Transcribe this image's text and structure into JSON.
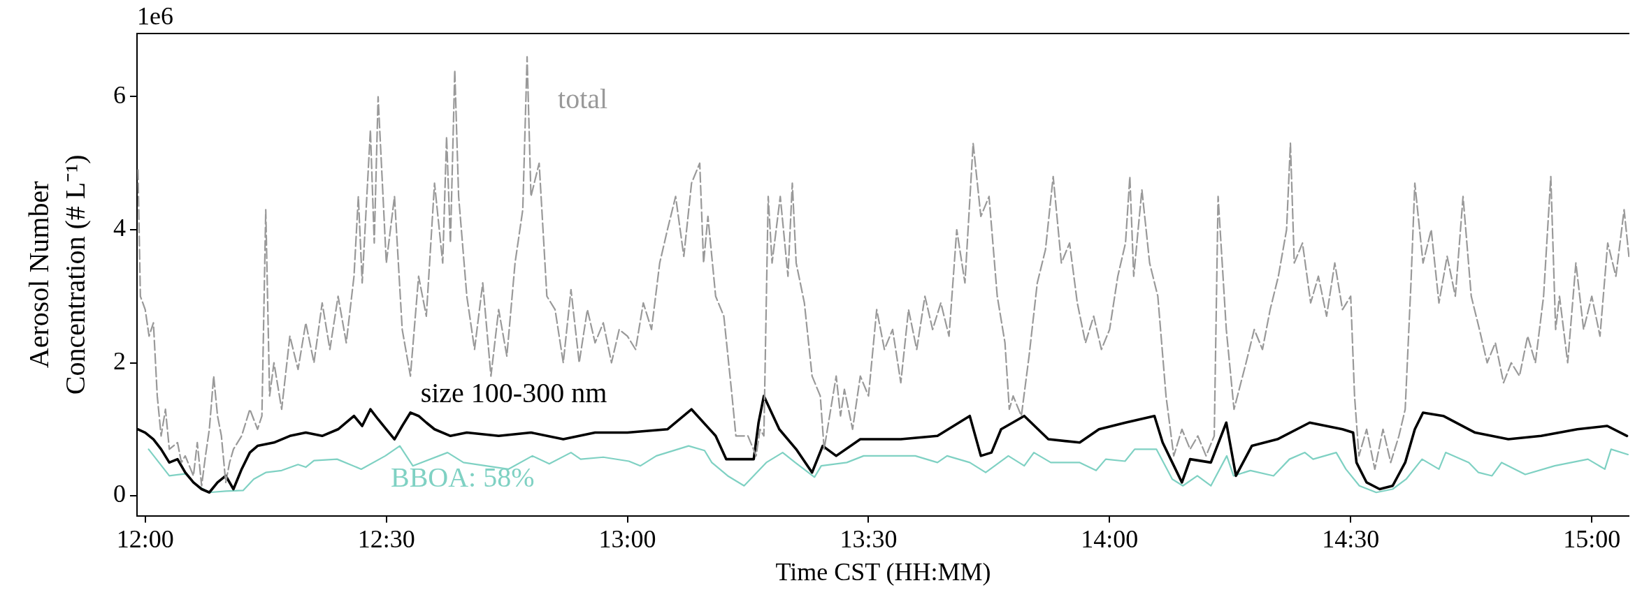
{
  "chart_data": {
    "type": "line",
    "xlabel": "Time CST (HH:MM)",
    "ylabel": "Aerosol Number Concentration (# L⁻¹)",
    "annotations": [
      "1e6"
    ],
    "xlim": [
      11.983,
      15.078
    ],
    "xticks": [
      {
        "value": 12,
        "label": "12:00"
      },
      {
        "value": 12.5,
        "label": "12:30"
      },
      {
        "value": 13,
        "label": "13:00"
      },
      {
        "value": 13.5,
        "label": "13:30"
      },
      {
        "value": 14,
        "label": "14:00"
      },
      {
        "value": 14.5,
        "label": "14:30"
      },
      {
        "value": 15,
        "label": "15:00"
      }
    ],
    "ylim": [
      -0.3,
      6.95
    ],
    "yticks": [
      0,
      2,
      4,
      6
    ],
    "marker": "none",
    "series": [
      {
        "name": "total",
        "color": "#999999",
        "line_style": "dashed",
        "x": [
          11.985,
          11.99,
          12.0,
          12.008,
          12.017,
          12.025,
          12.033,
          12.042,
          12.05,
          12.067,
          12.075,
          12.083,
          12.1,
          12.108,
          12.117,
          12.125,
          12.133,
          12.142,
          12.15,
          12.158,
          12.167,
          12.175,
          12.183,
          12.2,
          12.217,
          12.233,
          12.242,
          12.25,
          12.258,
          12.267,
          12.283,
          12.3,
          12.317,
          12.333,
          12.35,
          12.367,
          12.383,
          12.4,
          12.417,
          12.433,
          12.442,
          12.45,
          12.467,
          12.475,
          12.483,
          12.5,
          12.517,
          12.533,
          12.55,
          12.567,
          12.583,
          12.6,
          12.617,
          12.625,
          12.633,
          12.642,
          12.65,
          12.667,
          12.683,
          12.7,
          12.717,
          12.733,
          12.75,
          12.767,
          12.783,
          12.792,
          12.8,
          12.817,
          12.833,
          12.85,
          12.867,
          12.883,
          12.9,
          12.917,
          12.933,
          12.95,
          12.967,
          12.983,
          13.0,
          13.017,
          13.033,
          13.05,
          13.067,
          13.083,
          13.1,
          13.117,
          13.133,
          13.15,
          13.158,
          13.167,
          13.183,
          13.2,
          13.217,
          13.225,
          13.25,
          13.267,
          13.275,
          13.283,
          13.292,
          13.3,
          13.317,
          13.333,
          13.342,
          13.35,
          13.367,
          13.383,
          13.4,
          13.408,
          13.433,
          13.442,
          13.45,
          13.467,
          13.483,
          13.5,
          13.517,
          13.533,
          13.55,
          13.567,
          13.583,
          13.6,
          13.617,
          13.633,
          13.65,
          13.667,
          13.683,
          13.7,
          13.717,
          13.733,
          13.75,
          13.767,
          13.783,
          13.792,
          13.8,
          13.817,
          13.833,
          13.85,
          13.867,
          13.883,
          13.9,
          13.917,
          13.933,
          13.95,
          13.967,
          13.983,
          14.0,
          14.017,
          14.033,
          14.042,
          14.05,
          14.067,
          14.083,
          14.1,
          14.117,
          14.133,
          14.15,
          14.167,
          14.183,
          14.2,
          14.217,
          14.225,
          14.242,
          14.258,
          14.283,
          14.3,
          14.317,
          14.333,
          14.35,
          14.367,
          14.375,
          14.383,
          14.4,
          14.417,
          14.433,
          14.45,
          14.467,
          14.483,
          14.5,
          14.508,
          14.517,
          14.533,
          14.55,
          14.567,
          14.583,
          14.6,
          14.613,
          14.625,
          14.633,
          14.65,
          14.667,
          14.683,
          14.7,
          14.717,
          14.733,
          14.75,
          14.767,
          14.783,
          14.8,
          14.817,
          14.833,
          14.85,
          14.867,
          14.883,
          14.9,
          14.915,
          14.925,
          14.933,
          14.95,
          14.967,
          14.983,
          15.0,
          15.017,
          15.033,
          15.05,
          15.067,
          15.077
        ],
        "values": [
          4.9,
          3.0,
          2.8,
          2.4,
          2.6,
          1.5,
          0.9,
          1.3,
          0.7,
          0.8,
          0.5,
          0.6,
          0.3,
          0.8,
          0.15,
          0.6,
          1.0,
          1.8,
          1.2,
          0.9,
          0.2,
          0.5,
          0.7,
          0.9,
          1.3,
          1.0,
          1.2,
          4.3,
          1.5,
          2.0,
          1.3,
          2.4,
          1.9,
          2.6,
          2.0,
          2.9,
          2.2,
          3.0,
          2.3,
          3.3,
          4.5,
          3.2,
          5.5,
          3.8,
          6.0,
          3.5,
          4.5,
          2.5,
          1.8,
          3.3,
          2.7,
          4.7,
          3.5,
          5.4,
          3.8,
          6.4,
          4.5,
          3.0,
          2.2,
          3.2,
          1.8,
          2.8,
          2.1,
          3.5,
          4.3,
          6.6,
          4.5,
          5.0,
          3.0,
          2.8,
          2.0,
          3.1,
          2.0,
          2.8,
          2.3,
          2.6,
          2.0,
          2.5,
          2.4,
          2.2,
          2.9,
          2.5,
          3.5,
          4.0,
          4.5,
          3.6,
          4.7,
          5.0,
          3.5,
          4.2,
          3.0,
          2.7,
          1.5,
          0.9,
          0.9,
          0.6,
          1.0,
          0.9,
          4.5,
          3.5,
          4.5,
          3.3,
          4.7,
          3.5,
          2.9,
          1.8,
          1.5,
          0.7,
          1.8,
          1.2,
          1.6,
          1.0,
          1.8,
          1.5,
          2.8,
          2.2,
          2.5,
          1.7,
          2.8,
          2.2,
          3.0,
          2.5,
          2.9,
          2.4,
          4.0,
          3.2,
          5.3,
          4.2,
          4.5,
          3.0,
          2.3,
          1.3,
          1.5,
          1.2,
          2.1,
          3.2,
          3.7,
          4.8,
          3.5,
          3.8,
          2.9,
          2.3,
          2.7,
          2.2,
          2.5,
          3.3,
          3.8,
          4.8,
          3.3,
          4.6,
          3.5,
          3.0,
          1.5,
          0.6,
          1.0,
          0.7,
          0.9,
          0.6,
          0.9,
          4.5,
          2.5,
          1.3,
          2.0,
          2.5,
          2.2,
          2.8,
          3.3,
          4.0,
          5.3,
          3.5,
          3.8,
          2.9,
          3.3,
          2.7,
          3.5,
          2.8,
          3.0,
          1.5,
          0.6,
          1.0,
          0.4,
          1.0,
          0.5,
          0.9,
          1.3,
          3.2,
          4.7,
          3.5,
          4.0,
          2.9,
          3.6,
          3.0,
          4.5,
          3.0,
          2.5,
          2.0,
          2.3,
          1.7,
          2.0,
          1.8,
          2.4,
          2.0,
          3.0,
          4.8,
          2.5,
          3.0,
          2.0,
          3.5,
          2.5,
          3.0,
          2.4,
          3.8,
          3.3,
          4.3,
          3.6
        ]
      },
      {
        "name": "size 100-300 nm",
        "color": "#000000",
        "line_style": "solid",
        "x": [
          11.985,
          12.0,
          12.017,
          12.033,
          12.05,
          12.067,
          12.083,
          12.1,
          12.117,
          12.133,
          12.15,
          12.167,
          12.183,
          12.2,
          12.217,
          12.233,
          12.267,
          12.3,
          12.333,
          12.367,
          12.4,
          12.433,
          12.45,
          12.467,
          12.483,
          12.5,
          12.517,
          12.533,
          12.55,
          12.567,
          12.583,
          12.6,
          12.633,
          12.667,
          12.733,
          12.8,
          12.867,
          12.933,
          13.0,
          13.083,
          13.133,
          13.183,
          13.205,
          13.262,
          13.272,
          13.283,
          13.315,
          13.35,
          13.383,
          13.405,
          13.433,
          13.483,
          13.567,
          13.643,
          13.71,
          13.733,
          13.755,
          13.775,
          13.823,
          13.873,
          13.938,
          13.978,
          14.033,
          14.093,
          14.11,
          14.13,
          14.15,
          14.167,
          14.21,
          14.242,
          14.262,
          14.295,
          14.348,
          14.415,
          14.483,
          14.505,
          14.512,
          14.533,
          14.56,
          14.587,
          14.613,
          14.633,
          14.65,
          14.692,
          14.758,
          14.827,
          14.895,
          14.97,
          15.032,
          15.073
        ],
        "values": [
          1.0,
          0.95,
          0.85,
          0.7,
          0.5,
          0.55,
          0.35,
          0.2,
          0.1,
          0.05,
          0.2,
          0.3,
          0.1,
          0.4,
          0.65,
          0.75,
          0.8,
          0.9,
          0.95,
          0.9,
          1.0,
          1.2,
          1.05,
          1.3,
          1.15,
          1.0,
          0.85,
          1.05,
          1.25,
          1.2,
          1.1,
          1.0,
          0.9,
          0.95,
          0.9,
          0.95,
          0.85,
          0.95,
          0.95,
          1.0,
          1.3,
          0.9,
          0.55,
          0.55,
          1.1,
          1.5,
          1.0,
          0.7,
          0.35,
          0.75,
          0.6,
          0.85,
          0.85,
          0.9,
          1.2,
          0.6,
          0.65,
          1.0,
          1.2,
          0.85,
          0.8,
          1.0,
          1.1,
          1.2,
          0.8,
          0.5,
          0.2,
          0.55,
          0.5,
          1.1,
          0.3,
          0.75,
          0.85,
          1.1,
          1.0,
          0.95,
          0.5,
          0.2,
          0.1,
          0.15,
          0.5,
          1.0,
          1.25,
          1.2,
          0.95,
          0.85,
          0.9,
          1.0,
          1.05,
          0.9
        ]
      },
      {
        "name": "BBOA: 58%",
        "color": "#7fd1c3",
        "line_style": "solid",
        "x": [
          12.007,
          12.05,
          12.083,
          12.108,
          12.133,
          12.167,
          12.203,
          12.225,
          12.25,
          12.283,
          12.317,
          12.333,
          12.35,
          12.398,
          12.448,
          12.498,
          12.528,
          12.555,
          12.627,
          12.66,
          12.753,
          12.803,
          12.838,
          12.883,
          12.903,
          12.95,
          13.003,
          13.027,
          13.06,
          13.127,
          13.16,
          13.175,
          13.208,
          13.242,
          13.288,
          13.322,
          13.348,
          13.388,
          13.402,
          13.455,
          13.49,
          13.55,
          13.597,
          13.643,
          13.663,
          13.71,
          13.743,
          13.79,
          13.823,
          13.843,
          13.878,
          13.938,
          13.972,
          13.992,
          14.032,
          14.052,
          14.097,
          14.13,
          14.152,
          14.182,
          14.21,
          14.243,
          14.257,
          14.292,
          14.34,
          14.373,
          14.405,
          14.422,
          14.47,
          14.49,
          14.518,
          14.553,
          14.587,
          14.615,
          14.648,
          14.683,
          14.697,
          14.745,
          14.765,
          14.793,
          14.813,
          14.862,
          14.923,
          14.992,
          15.027,
          15.04,
          15.075
        ],
        "values": [
          0.7,
          0.3,
          0.33,
          0.15,
          0.05,
          0.07,
          0.08,
          0.25,
          0.35,
          0.38,
          0.47,
          0.43,
          0.53,
          0.55,
          0.4,
          0.6,
          0.75,
          0.45,
          0.65,
          0.5,
          0.4,
          0.6,
          0.48,
          0.65,
          0.55,
          0.58,
          0.52,
          0.45,
          0.6,
          0.75,
          0.68,
          0.5,
          0.3,
          0.15,
          0.5,
          0.65,
          0.5,
          0.28,
          0.45,
          0.5,
          0.6,
          0.6,
          0.6,
          0.5,
          0.6,
          0.5,
          0.35,
          0.6,
          0.45,
          0.65,
          0.5,
          0.5,
          0.38,
          0.55,
          0.52,
          0.7,
          0.7,
          0.25,
          0.15,
          0.3,
          0.15,
          0.6,
          0.3,
          0.38,
          0.3,
          0.55,
          0.65,
          0.55,
          0.65,
          0.4,
          0.15,
          0.05,
          0.1,
          0.25,
          0.55,
          0.4,
          0.65,
          0.5,
          0.35,
          0.3,
          0.5,
          0.32,
          0.45,
          0.55,
          0.4,
          0.7,
          0.62
        ]
      }
    ]
  }
}
